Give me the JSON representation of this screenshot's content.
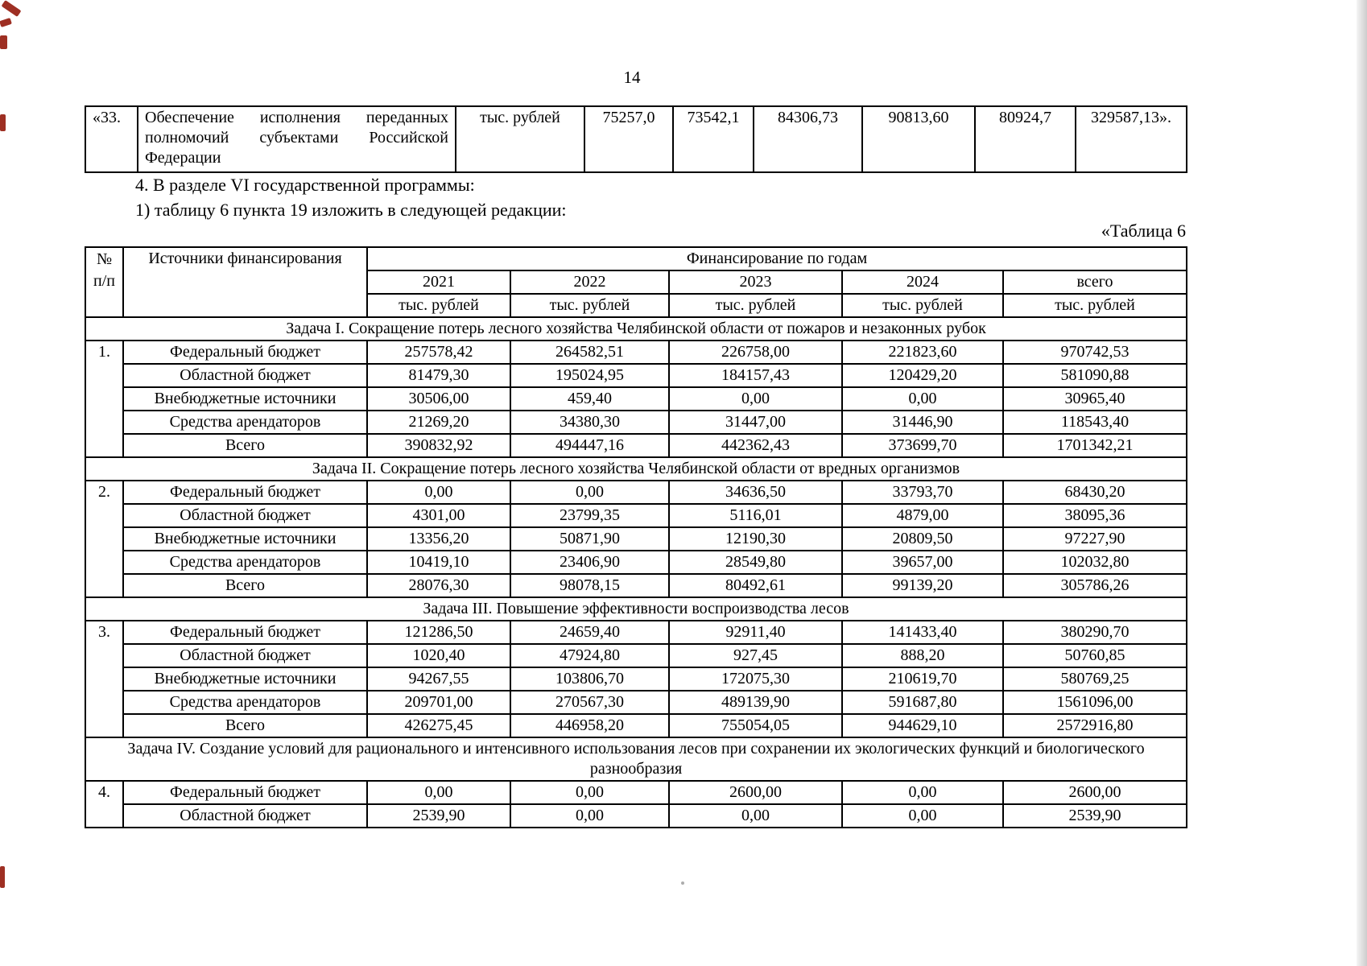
{
  "page": {
    "number": "14"
  },
  "top_table": {
    "num": "«33.",
    "name": "Обеспечение исполнения переданных полномочий субъектами Российской Федерации",
    "unit": "тыс. рублей",
    "values": [
      "75257,0",
      "73542,1",
      "84306,73",
      "90813,60",
      "80924,7",
      "329587,13»."
    ]
  },
  "paragraphs": {
    "p1": "4. В разделе VI государственной программы:",
    "p2": "1) таблицу 6 пункта 19 изложить в следующей редакции:"
  },
  "table6": {
    "caption": "«Таблица 6",
    "header": {
      "num_line1": "№",
      "num_line2": "п/п",
      "sources": "Источники финансирования",
      "financing": "Финансирование по годам",
      "years": [
        "2021",
        "2022",
        "2023",
        "2024",
        "всего"
      ],
      "unit": "тыс. рублей"
    },
    "sections": [
      {
        "num": "1.",
        "title": "Задача I. Сокращение потерь лесного хозяйства Челябинской области от пожаров и незаконных рубок",
        "rows": [
          {
            "label": "Федеральный бюджет",
            "values": [
              "257578,42",
              "264582,51",
              "226758,00",
              "221823,60",
              "970742,53"
            ]
          },
          {
            "label": "Областной бюджет",
            "values": [
              "81479,30",
              "195024,95",
              "184157,43",
              "120429,20",
              "581090,88"
            ]
          },
          {
            "label": "Внебюджетные источники",
            "values": [
              "30506,00",
              "459,40",
              "0,00",
              "0,00",
              "30965,40"
            ]
          },
          {
            "label": "Средства арендаторов",
            "values": [
              "21269,20",
              "34380,30",
              "31447,00",
              "31446,90",
              "118543,40"
            ]
          },
          {
            "label": "Всего",
            "values": [
              "390832,92",
              "494447,16",
              "442362,43",
              "373699,70",
              "1701342,21"
            ]
          }
        ]
      },
      {
        "num": "2.",
        "title": "Задача II. Сокращение потерь лесного хозяйства Челябинской области от вредных организмов",
        "rows": [
          {
            "label": "Федеральный бюджет",
            "values": [
              "0,00",
              "0,00",
              "34636,50",
              "33793,70",
              "68430,20"
            ]
          },
          {
            "label": "Областной бюджет",
            "values": [
              "4301,00",
              "23799,35",
              "5116,01",
              "4879,00",
              "38095,36"
            ]
          },
          {
            "label": "Внебюджетные источники",
            "values": [
              "13356,20",
              "50871,90",
              "12190,30",
              "20809,50",
              "97227,90"
            ]
          },
          {
            "label": "Средства арендаторов",
            "values": [
              "10419,10",
              "23406,90",
              "28549,80",
              "39657,00",
              "102032,80"
            ]
          },
          {
            "label": "Всего",
            "values": [
              "28076,30",
              "98078,15",
              "80492,61",
              "99139,20",
              "305786,26"
            ]
          }
        ]
      },
      {
        "num": "3.",
        "title": "Задача III. Повышение эффективности воспроизводства лесов",
        "rows": [
          {
            "label": "Федеральный бюджет",
            "values": [
              "121286,50",
              "24659,40",
              "92911,40",
              "141433,40",
              "380290,70"
            ]
          },
          {
            "label": "Областной бюджет",
            "values": [
              "1020,40",
              "47924,80",
              "927,45",
              "888,20",
              "50760,85"
            ]
          },
          {
            "label": "Внебюджетные источники",
            "values": [
              "94267,55",
              "103806,70",
              "172075,30",
              "210619,70",
              "580769,25"
            ]
          },
          {
            "label": "Средства арендаторов",
            "values": [
              "209701,00",
              "270567,30",
              "489139,90",
              "591687,80",
              "1561096,00"
            ]
          },
          {
            "label": "Всего",
            "values": [
              "426275,45",
              "446958,20",
              "755054,05",
              "944629,10",
              "2572916,80"
            ]
          }
        ]
      },
      {
        "num": "4.",
        "title": "Задача IV. Создание условий для рационального и интенсивного использования лесов при сохранении их экологических функций и биологического разнообразия",
        "rows": [
          {
            "label": "Федеральный бюджет",
            "values": [
              "0,00",
              "0,00",
              "2600,00",
              "0,00",
              "2600,00"
            ]
          },
          {
            "label": "Областной бюджет",
            "values": [
              "2539,90",
              "0,00",
              "0,00",
              "0,00",
              "2539,90"
            ]
          }
        ]
      }
    ]
  },
  "artifacts": {
    "red_mark_color": "#9e2f23"
  }
}
